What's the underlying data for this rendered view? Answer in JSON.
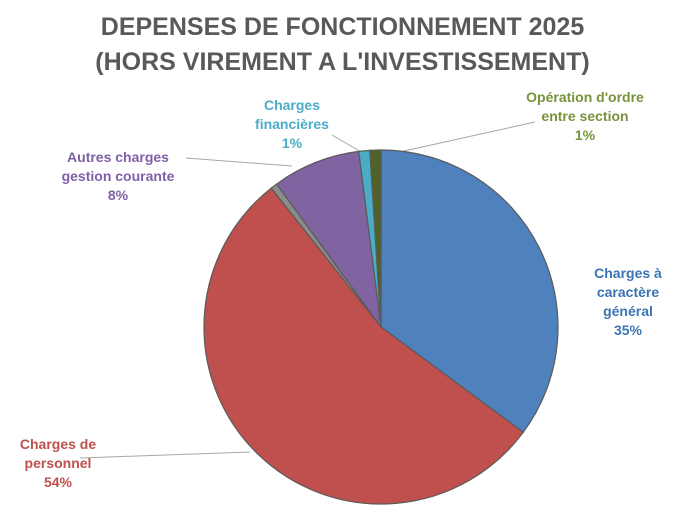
{
  "chart_data": {
    "type": "pie",
    "title": [
      "DEPENSES DE FONCTIONNEMENT 2025",
      "(HORS VIREMENT A L'INVESTISSEMENT)"
    ],
    "categories": [
      "Charges à caractère général",
      "Charges de personnel",
      null,
      "Autres charges gestion courante",
      "Charges financières",
      "Opération d'ordre entre section"
    ],
    "values": [
      35,
      54,
      0.6,
      8,
      1,
      1
    ],
    "value_labels": [
      "35%",
      "54%",
      null,
      "8%",
      "1%",
      "1%"
    ],
    "colors": [
      "#4f81bd",
      "#c0504d",
      "#8c8c8c",
      "#8064a2",
      "#4bacc6",
      "#4f6228"
    ]
  }
}
